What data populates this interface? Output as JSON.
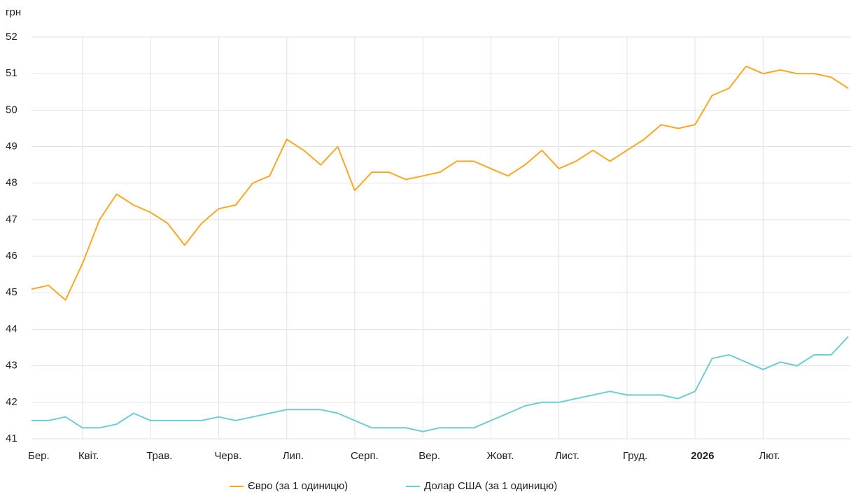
{
  "chart_data": {
    "type": "line",
    "y_unit": "грн",
    "categories": [
      "Бер.",
      null,
      null,
      "Квіт.",
      null,
      null,
      null,
      "Трав.",
      null,
      null,
      null,
      "Черв.",
      null,
      null,
      null,
      "Лип.",
      null,
      null,
      null,
      "Серп.",
      null,
      null,
      null,
      "Вер.",
      null,
      null,
      null,
      "Жовт.",
      null,
      null,
      null,
      "Лист.",
      null,
      null,
      null,
      "Груд.",
      null,
      null,
      null,
      "2026",
      null,
      null,
      null,
      "Лют.",
      null,
      null,
      null,
      null,
      null
    ],
    "series": [
      {
        "name": "Євро (за 1 одиницю)",
        "color": "#f9a825",
        "values": [
          45.1,
          45.2,
          44.8,
          45.8,
          47.0,
          47.7,
          47.4,
          47.2,
          46.9,
          46.3,
          46.9,
          47.3,
          47.4,
          48.0,
          48.2,
          49.2,
          48.9,
          48.5,
          49.0,
          47.8,
          48.3,
          48.3,
          48.1,
          48.2,
          48.3,
          48.6,
          48.6,
          48.4,
          48.2,
          48.5,
          48.9,
          48.4,
          48.6,
          48.9,
          48.6,
          48.9,
          49.2,
          49.6,
          49.5,
          49.6,
          50.4,
          50.6,
          51.2,
          51.0,
          51.1,
          51.0,
          51.0,
          50.9,
          50.6
        ]
      },
      {
        "name": "Долар США (за 1 одиницю)",
        "color": "#6fcdcf",
        "values": [
          41.5,
          41.5,
          41.6,
          41.3,
          41.3,
          41.4,
          41.7,
          41.5,
          41.5,
          41.5,
          41.5,
          41.6,
          41.5,
          41.6,
          41.7,
          41.8,
          41.8,
          41.8,
          41.7,
          41.5,
          41.3,
          41.3,
          41.3,
          41.2,
          41.3,
          41.3,
          41.3,
          41.5,
          41.7,
          41.9,
          42.0,
          42.0,
          42.1,
          42.2,
          42.3,
          42.2,
          42.2,
          42.2,
          42.1,
          42.3,
          43.2,
          43.3,
          43.1,
          42.9,
          43.1,
          43.0,
          43.3,
          43.3,
          43.8
        ]
      }
    ],
    "ylim": [
      41,
      52
    ],
    "yticks": [
      41,
      42,
      43,
      44,
      45,
      46,
      47,
      48,
      49,
      50,
      51,
      52
    ],
    "grid": true
  }
}
